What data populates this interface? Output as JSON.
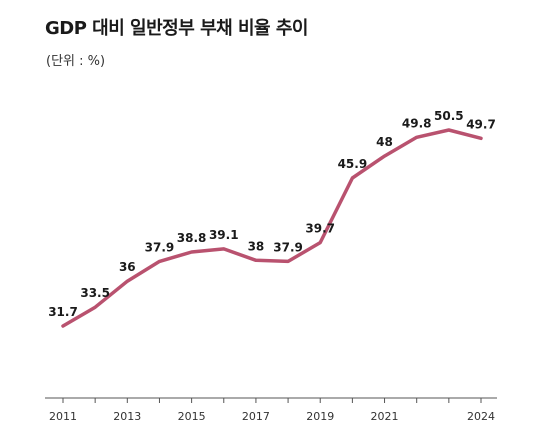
{
  "header": {
    "title": "GDP 대비 일반정부 부채 비율 추이",
    "unit": "(단위 : %)"
  },
  "colors": {
    "line": "#b9526f",
    "axis": "#555555",
    "text": "#1a1a1a"
  },
  "chart_data": {
    "type": "line",
    "title": "GDP 대비 일반정부 부채 비율 추이",
    "unit_label": "(단위 : %)",
    "x": [
      2011,
      2012,
      2013,
      2014,
      2015,
      2016,
      2017,
      2018,
      2019,
      2020,
      2021,
      2022,
      2023,
      2024
    ],
    "values": [
      31.7,
      33.5,
      36,
      37.9,
      38.8,
      39.1,
      38,
      37.9,
      39.7,
      45.9,
      48,
      49.8,
      50.5,
      49.7
    ],
    "data_labels": [
      "31.7",
      "33.5",
      "36",
      "37.9",
      "38.8",
      "39.1",
      "38",
      "37.9",
      "39.7",
      "45.9",
      "48",
      "49.8",
      "50.5",
      "49.7"
    ],
    "x_tick_labels": [
      "2011",
      "2013",
      "2015",
      "2017",
      "2019",
      "2021",
      "2024"
    ],
    "x_tick_values": [
      2011,
      2013,
      2015,
      2017,
      2019,
      2021,
      2024
    ],
    "ylim": [
      25,
      55
    ],
    "grid": false
  }
}
